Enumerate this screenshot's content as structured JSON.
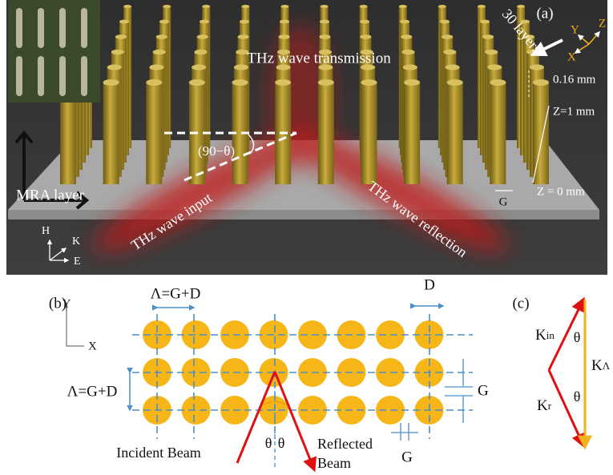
{
  "panel_a": {
    "label": "(a)",
    "transmission": "THz wave transmission",
    "layers": "30 layers",
    "spacing": "0.16 mm",
    "z_top": "Z=1 mm",
    "z_bottom": "Z = 0 mm",
    "gap": "G",
    "angle": "(90−θ)",
    "input": "THz wave input",
    "reflection": "THz wave reflection",
    "layer": "MRA layer",
    "axes_hke": [
      "H",
      "K",
      "E"
    ],
    "axes_xyz": [
      "X",
      "Y",
      "Z"
    ]
  },
  "panel_b": {
    "label": "(b)",
    "axis_y": "Y",
    "axis_x": "X",
    "period_top": "Λ=G+D",
    "diameter": "D",
    "period_left": "Λ=G+D",
    "gap_right": "G",
    "gap_bottom": "G",
    "theta_left": "θ",
    "theta_right": "θ",
    "incident": "Incident Beam",
    "reflected": [
      "Reflected",
      "Beam"
    ]
  },
  "panel_c": {
    "label": "(c)",
    "k_in": {
      "base": "K",
      "sub": "in"
    },
    "theta_top": "θ",
    "k_lambda": {
      "base": "K",
      "sub": "Λ"
    },
    "k_r": {
      "base": "K",
      "sub": "r"
    },
    "theta_bottom": "θ"
  }
}
